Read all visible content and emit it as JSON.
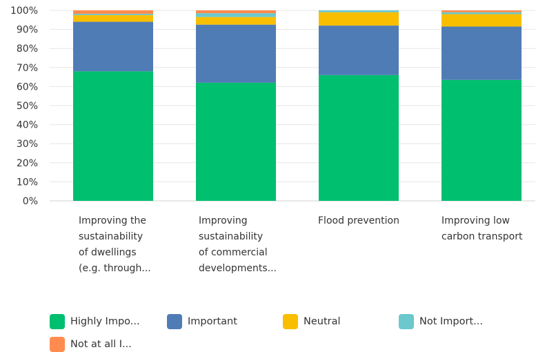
{
  "chart_data": {
    "type": "bar",
    "stacked": true,
    "y_axis": {
      "ylim": [
        0,
        100
      ],
      "tick_labels": [
        "0%",
        "10%",
        "20%",
        "30%",
        "40%",
        "50%",
        "60%",
        "70%",
        "80%",
        "90%",
        "100%"
      ]
    },
    "categories": [
      [
        "Improving the",
        "sustainability",
        "of dwellings",
        "(e.g. through..."
      ],
      [
        "Improving",
        "sustainability",
        "of commercial",
        "developments..."
      ],
      [
        "Flood prevention"
      ],
      [
        "Improving low",
        "carbon transport"
      ]
    ],
    "series": [
      {
        "name": "Highly Impo...",
        "color": "#00bf6f",
        "values": [
          68,
          62,
          66,
          63.5
        ]
      },
      {
        "name": "Important",
        "color": "#507cb6",
        "values": [
          26,
          30.5,
          26,
          28
        ]
      },
      {
        "name": "Neutral",
        "color": "#f9be00",
        "values": [
          3.5,
          4.0,
          7.0,
          6.5
        ]
      },
      {
        "name": "Not Import...",
        "color": "#6bc8cd",
        "values": [
          0.7,
          2.0,
          1.0,
          1.0
        ]
      },
      {
        "name": "Not at all I...",
        "color": "#ff8b4f",
        "values": [
          1.8,
          1.5,
          0,
          1.0
        ]
      }
    ],
    "legend_position": "bottom",
    "grid": true
  }
}
